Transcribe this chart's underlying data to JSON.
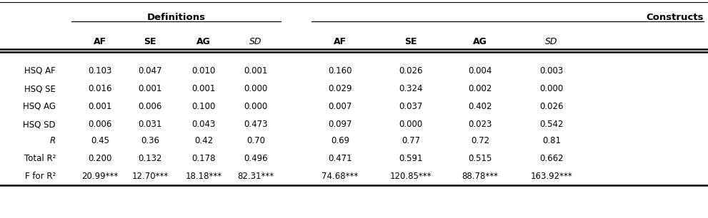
{
  "title_left": "Definitions",
  "title_right": "Constructs",
  "col_headers": [
    "AF",
    "SE",
    "AG",
    "SD",
    "AF",
    "SE",
    "AG",
    "SD"
  ],
  "col_headers_italic": [
    false,
    false,
    false,
    true,
    false,
    false,
    false,
    true
  ],
  "row_labels": [
    "HSQ AF",
    "HSQ SE",
    "HSQ AG",
    "HSQ SD",
    "R",
    "Total R²",
    "F for R²"
  ],
  "row_labels_italic": [
    false,
    false,
    false,
    false,
    true,
    false,
    false
  ],
  "row_labels_special": [
    "",
    "",
    "",
    "",
    "R",
    "Total R²",
    "F for R²"
  ],
  "rows": [
    [
      "0.103",
      "0.047",
      "0.010",
      "0.001",
      "0.160",
      "0.026",
      "0.004",
      "0.003"
    ],
    [
      "0.016",
      "0.001",
      "0.001",
      "0.000",
      "0.029",
      "0.324",
      "0.002",
      "0.000"
    ],
    [
      "0.001",
      "0.006",
      "0.100",
      "0.000",
      "0.007",
      "0.037",
      "0.402",
      "0.026"
    ],
    [
      "0.006",
      "0.031",
      "0.043",
      "0.473",
      "0.097",
      "0.000",
      "0.023",
      "0.542"
    ],
    [
      "0.45",
      "0.36",
      "0.42",
      "0.70",
      "0.69",
      "0.77",
      "0.72",
      "0.81"
    ],
    [
      "0.200",
      "0.132",
      "0.178",
      "0.496",
      "0.471",
      "0.591",
      "0.515",
      "0.662"
    ],
    [
      "20.99***",
      "12.70***",
      "18.18***",
      "82.31***",
      "74.68***",
      "120.85***",
      "88.78***",
      "163.92***"
    ]
  ],
  "bg_color": "#ffffff",
  "text_color": "#000000",
  "fontsize": 8.5,
  "header_fontsize": 9.5,
  "figsize": [
    9.91,
    3.06
  ],
  "dpi": 100
}
